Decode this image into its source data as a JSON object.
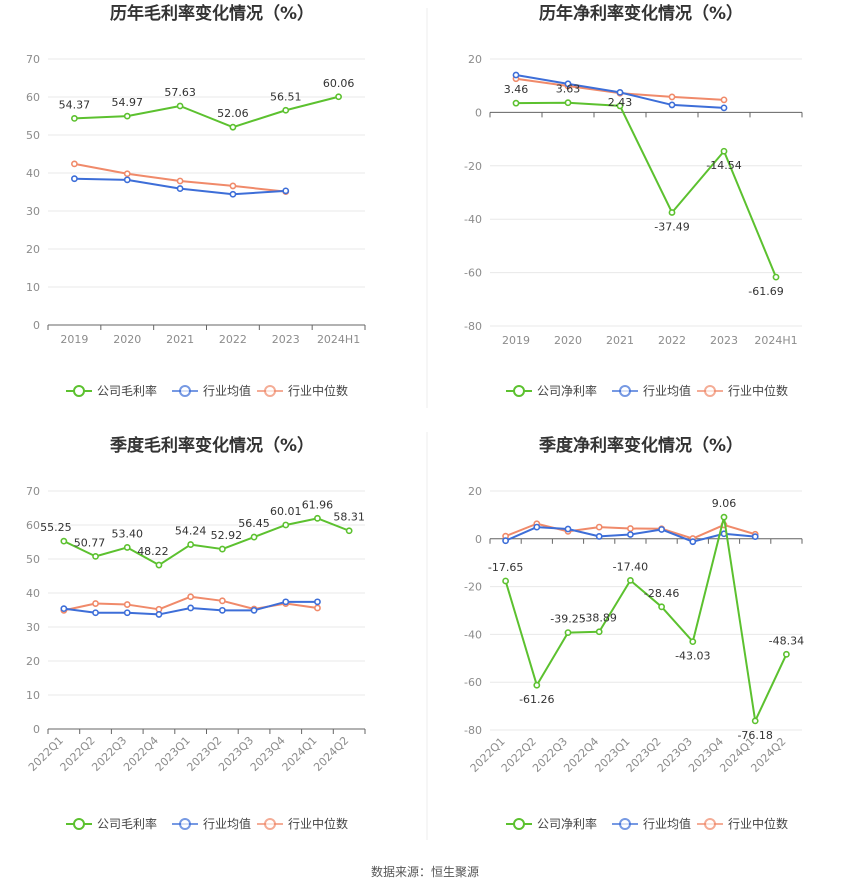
{
  "source_label": "数据来源：恒生聚源",
  "colors": {
    "company": "#5cc12f",
    "industry_avg": "#3d6ed8",
    "industry_median": "#f08a6a",
    "grid": "#e8e8e8",
    "axis": "#666666"
  },
  "chart_data": [
    {
      "type": "line",
      "title": "历年毛利率变化情况（%）",
      "categories": [
        "2019",
        "2020",
        "2021",
        "2022",
        "2023",
        "2024H1"
      ],
      "ylim": [
        0,
        70
      ],
      "yticks": [
        0,
        10,
        20,
        30,
        40,
        50,
        60,
        70
      ],
      "series": [
        {
          "name": "公司毛利率",
          "values": [
            54.37,
            54.97,
            57.63,
            52.06,
            56.51,
            60.06
          ],
          "labels": [
            "54.37",
            "54.97",
            "57.63",
            "52.06",
            "56.51",
            "60.06"
          ]
        },
        {
          "name": "行业均值",
          "values": [
            38.5,
            38.2,
            35.9,
            34.4,
            35.3,
            null
          ]
        },
        {
          "name": "行业中位数",
          "values": [
            42.4,
            39.8,
            37.9,
            36.6,
            35.1,
            null
          ]
        }
      ]
    },
    {
      "type": "line",
      "title": "历年净利率变化情况（%）",
      "categories": [
        "2019",
        "2020",
        "2021",
        "2022",
        "2023",
        "2024H1"
      ],
      "ylim": [
        -80,
        20
      ],
      "yticks": [
        -80,
        -60,
        -40,
        -20,
        0,
        20
      ],
      "series": [
        {
          "name": "公司净利率",
          "values": [
            3.46,
            3.63,
            2.43,
            -37.49,
            -14.54,
            -61.69
          ],
          "labels": [
            "3.46",
            "3.63",
            "2.43",
            "-37.49",
            "-14.54",
            "-61.69"
          ]
        },
        {
          "name": "行业均值",
          "values": [
            14.0,
            10.7,
            7.5,
            2.8,
            1.7,
            null
          ]
        },
        {
          "name": "行业中位数",
          "values": [
            12.6,
            9.9,
            7.2,
            5.8,
            4.7,
            null
          ]
        }
      ]
    },
    {
      "type": "line",
      "title": "季度毛利率变化情况（%）",
      "categories": [
        "2022Q1",
        "2022Q2",
        "2022Q3",
        "2022Q4",
        "2023Q1",
        "2023Q2",
        "2023Q3",
        "2023Q4",
        "2024Q1",
        "2024Q2"
      ],
      "ylim": [
        0,
        70
      ],
      "yticks": [
        0,
        10,
        20,
        30,
        40,
        50,
        60,
        70
      ],
      "series": [
        {
          "name": "公司毛利率",
          "values": [
            55.25,
            50.77,
            53.4,
            48.22,
            54.24,
            52.92,
            56.45,
            60.01,
            61.96,
            58.31
          ],
          "labels": [
            "55.25",
            "50.77",
            "53.40",
            "48.22",
            "54.24",
            "52.92",
            "56.45",
            "60.01",
            "61.96",
            "58.31"
          ]
        },
        {
          "name": "行业均值",
          "values": [
            35.4,
            34.2,
            34.2,
            33.7,
            35.6,
            34.9,
            34.9,
            37.4,
            37.4,
            null
          ]
        },
        {
          "name": "行业中位数",
          "values": [
            34.9,
            36.9,
            36.6,
            35.2,
            38.9,
            37.7,
            35.3,
            36.9,
            35.6,
            null
          ]
        }
      ]
    },
    {
      "type": "line",
      "title": "季度净利率变化情况（%）",
      "categories": [
        "2022Q1",
        "2022Q2",
        "2022Q3",
        "2022Q4",
        "2023Q1",
        "2023Q2",
        "2023Q3",
        "2023Q4",
        "2024Q1",
        "2024Q2"
      ],
      "ylim": [
        -80,
        20
      ],
      "yticks": [
        -80,
        -60,
        -40,
        -20,
        0,
        20
      ],
      "series": [
        {
          "name": "公司净利率",
          "values": [
            -17.65,
            -61.26,
            -39.25,
            -38.89,
            -17.4,
            -28.46,
            -43.03,
            9.06,
            -76.18,
            -48.34
          ],
          "labels": [
            "-17.65",
            "-61.26",
            "-39.25",
            "-38.89",
            "-17.40",
            "-28.46",
            "-43.03",
            "9.06",
            "-76.18",
            "-48.34"
          ]
        },
        {
          "name": "行业均值",
          "values": [
            -0.8,
            4.9,
            4.1,
            1.0,
            1.8,
            3.9,
            -1.2,
            2.1,
            0.9,
            null
          ]
        },
        {
          "name": "行业中位数",
          "values": [
            1.1,
            6.3,
            3.1,
            4.9,
            4.3,
            4.2,
            0.1,
            5.8,
            1.9,
            null
          ]
        }
      ]
    }
  ]
}
